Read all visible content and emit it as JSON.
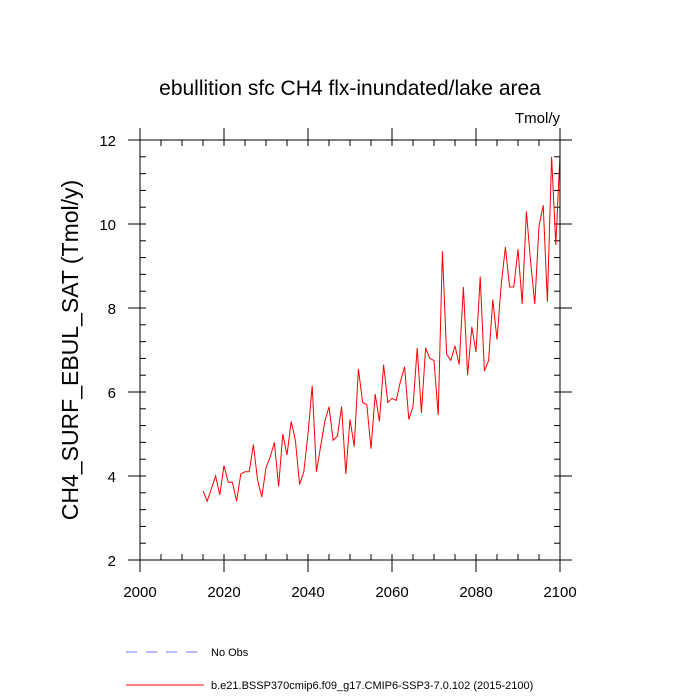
{
  "chart_data": {
    "type": "line",
    "title": "ebullition sfc CH4 flx-inundated/lake area",
    "units": "Tmol/y",
    "ylabel": "CH4_SURF_EBUL_SAT  (Tmol/y)",
    "xlabel": "",
    "xlim": [
      2000,
      2100
    ],
    "ylim": [
      2,
      12
    ],
    "x_ticks": [
      2000,
      2020,
      2040,
      2060,
      2080,
      2100
    ],
    "y_ticks": [
      2,
      4,
      6,
      8,
      10,
      12
    ],
    "x_tick_labels": [
      "2000",
      "2020",
      "2040",
      "2060",
      "2080",
      "2100"
    ],
    "y_tick_labels": [
      "2",
      "4",
      "6",
      "8",
      "10",
      "12"
    ],
    "x_minor_step": 5,
    "y_minor_step": 0.4,
    "grid": false,
    "legend_position": "bottom",
    "series": [
      {
        "name": "b.e21.BSSP370cmip6.f09_g17.CMIP6-SSP3-7.0.102 (2015-2100)",
        "color": "#ff0000",
        "dash": "solid",
        "x": [
          2015,
          2016,
          2017,
          2018,
          2019,
          2020,
          2021,
          2022,
          2023,
          2024,
          2025,
          2026,
          2027,
          2028,
          2029,
          2030,
          2031,
          2032,
          2033,
          2034,
          2035,
          2036,
          2037,
          2038,
          2039,
          2040,
          2041,
          2042,
          2043,
          2044,
          2045,
          2046,
          2047,
          2048,
          2049,
          2050,
          2051,
          2052,
          2053,
          2054,
          2055,
          2056,
          2057,
          2058,
          2059,
          2060,
          2061,
          2062,
          2063,
          2064,
          2065,
          2066,
          2067,
          2068,
          2069,
          2070,
          2071,
          2072,
          2073,
          2074,
          2075,
          2076,
          2077,
          2078,
          2079,
          2080,
          2081,
          2082,
          2083,
          2084,
          2085,
          2086,
          2087,
          2088,
          2089,
          2090,
          2091,
          2092,
          2093,
          2094,
          2095,
          2096,
          2097,
          2098,
          2099,
          2100
        ],
        "y": [
          3.65,
          3.4,
          3.7,
          4.0,
          3.55,
          4.25,
          3.85,
          3.85,
          3.4,
          4.05,
          4.1,
          4.1,
          4.75,
          3.9,
          3.5,
          4.2,
          4.45,
          4.8,
          3.75,
          5.0,
          4.5,
          5.3,
          4.85,
          3.8,
          4.1,
          5.0,
          6.15,
          4.1,
          4.7,
          5.3,
          5.65,
          4.85,
          4.95,
          5.65,
          4.05,
          5.35,
          4.7,
          6.55,
          5.75,
          5.7,
          4.65,
          5.95,
          5.3,
          6.65,
          5.75,
          5.85,
          5.8,
          6.25,
          6.6,
          5.35,
          5.65,
          7.05,
          5.5,
          7.05,
          6.8,
          6.75,
          5.45,
          9.35,
          6.9,
          6.75,
          7.1,
          6.65,
          8.5,
          6.4,
          7.55,
          6.95,
          8.75,
          6.5,
          6.75,
          8.2,
          7.25,
          8.55,
          9.45,
          8.5,
          8.5,
          9.4,
          8.1,
          10.3,
          9.1,
          8.1,
          9.95,
          10.45,
          8.15,
          11.6,
          9.5,
          11.65
        ]
      }
    ],
    "legend": [
      {
        "label": "No Obs",
        "color": "#7777ff",
        "dash": "dashed"
      },
      {
        "label": "b.e21.BSSP370cmip6.f09_g17.CMIP6-SSP3-7.0.102 (2015-2100)",
        "color": "#ff0000",
        "dash": "solid"
      }
    ]
  }
}
